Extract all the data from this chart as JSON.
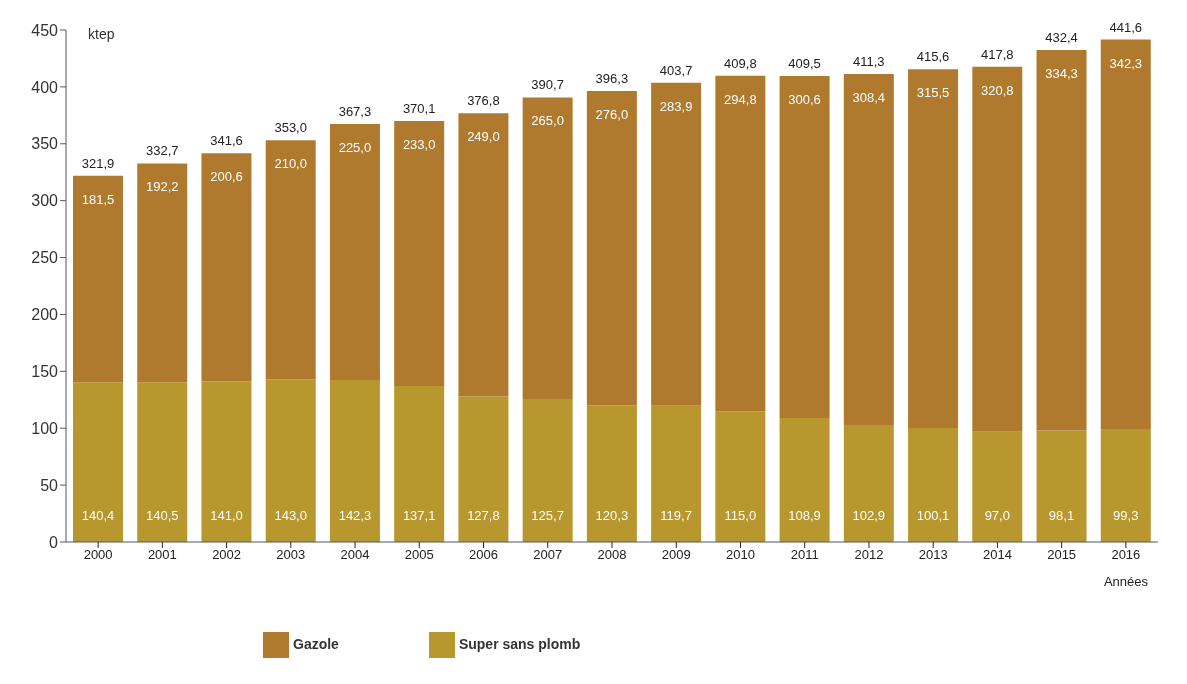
{
  "chart_data": {
    "type": "bar",
    "stacked": true,
    "ylabel": "ktep",
    "xlabel": "Années",
    "categories": [
      "2000",
      "2001",
      "2002",
      "2003",
      "2004",
      "2005",
      "2006",
      "2007",
      "2008",
      "2009",
      "2010",
      "2011",
      "2012",
      "2013",
      "2014",
      "2015",
      "2016"
    ],
    "series": [
      {
        "name": "Super sans plomb",
        "color": "#b8982e",
        "values": [
          140.4,
          140.5,
          141.0,
          143.0,
          142.3,
          137.1,
          127.8,
          125.7,
          120.3,
          119.7,
          115.0,
          108.9,
          102.9,
          100.1,
          97.0,
          98.1,
          99.3
        ],
        "value_labels": [
          "140,4",
          "140,5",
          "141,0",
          "143,0",
          "142,3",
          "137,1",
          "127,8",
          "125,7",
          "120,3",
          "119,7",
          "115,0",
          "108,9",
          "102,9",
          "100,1",
          "97,0",
          "98,1",
          "99,3"
        ]
      },
      {
        "name": "Gazole",
        "color": "#b07a2e",
        "values": [
          181.5,
          192.2,
          200.6,
          210.0,
          225.0,
          233.0,
          249.0,
          265.0,
          276.0,
          283.9,
          294.8,
          300.6,
          308.4,
          315.5,
          320.8,
          334.3,
          342.3
        ],
        "value_labels": [
          "181,5",
          "192,2",
          "200,6",
          "210,0",
          "225,0",
          "233,0",
          "249,0",
          "265,0",
          "276,0",
          "283,9",
          "294,8",
          "300,6",
          "308,4",
          "315,5",
          "320,8",
          "334,3",
          "342,3"
        ]
      }
    ],
    "totals": [
      "321,9",
      "332,7",
      "341,6",
      "353,0",
      "367,3",
      "370,1",
      "376,8",
      "390,7",
      "396,3",
      "403,7",
      "409,8",
      "409,5",
      "411,3",
      "415,6",
      "417,8",
      "432,4",
      "441,6"
    ],
    "ylim": [
      0,
      450
    ],
    "yticks": [
      0,
      50,
      100,
      150,
      200,
      250,
      300,
      350,
      400,
      450
    ],
    "grid": false,
    "legend": "bottom"
  }
}
